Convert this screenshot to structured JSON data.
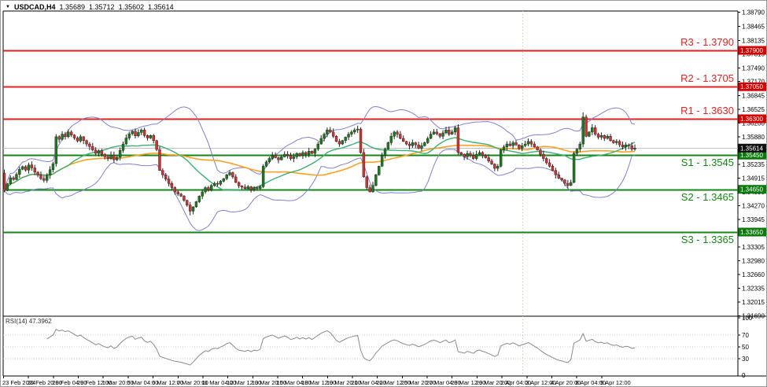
{
  "window": {
    "symbol_timeframe": "USDCAD,H4",
    "menu_icon": "chart-dropdown-triangle"
  },
  "colors": {
    "bull": "#1e7a1e",
    "bear": "#cd3434",
    "candle_outline": "#1a1a1a",
    "wick": "#222222",
    "bollinger": "#8181ce",
    "ma_fast": "#3dae72",
    "ma_slow": "#ffa022",
    "resistance": "#e32222",
    "support": "#168716",
    "current_price_line": "#c0c0c0",
    "badge_resistance": "#d40000",
    "badge_support": "#0b7a0b",
    "badge_current": "#111111",
    "rsi_line": "#8a8a8a",
    "grid_dotted": "#cccccc",
    "period_separator": "#a4d4a4",
    "frame": "#000000",
    "axis_text": "#000000"
  },
  "chart_data": {
    "type": "candlestick",
    "symbol": "USDCAD",
    "timeframe": "H4",
    "title": "USDCAD,H4",
    "ohlc_display": {
      "open": "1.35689",
      "high": "1.35712",
      "low": "1.35602",
      "close": "1.35614"
    },
    "current_price": {
      "value": 1.35614,
      "badge": "1.35614"
    },
    "levels": [
      {
        "name": "R3",
        "label": "R3 - 1.3790",
        "price": 1.379,
        "badge": "1.37900",
        "kind": "resistance"
      },
      {
        "name": "R2",
        "label": "R2 - 1.3705",
        "price": 1.3705,
        "badge": "1.37050",
        "kind": "resistance"
      },
      {
        "name": "R1",
        "label": "R1 - 1.3630",
        "price": 1.363,
        "badge": "1.36300",
        "kind": "resistance"
      },
      {
        "name": "S1",
        "label": "S1 - 1.3545",
        "price": 1.3545,
        "badge": "1.35450",
        "kind": "support"
      },
      {
        "name": "S2",
        "label": "S2 - 1.3465",
        "price": 1.3465,
        "badge": "1.34650",
        "kind": "support"
      },
      {
        "name": "S3",
        "label": "S3 - 1.3365",
        "price": 1.3365,
        "badge": "1.33650",
        "kind": "support"
      }
    ],
    "price_ticks": [
      "1.38790",
      "1.38465",
      "1.38135",
      "1.37815",
      "1.37490",
      "1.37170",
      "1.36845",
      "1.36525",
      "1.36200",
      "1.35880",
      "1.35560",
      "1.35235",
      "1.34915",
      "1.34590",
      "1.34270",
      "1.33945",
      "1.33625",
      "1.33305",
      "1.32980",
      "1.32660",
      "1.32335",
      "1.32015",
      "1.31690"
    ],
    "time_ticks": [
      "23 Feb 2024",
      "26 Feb 20:00",
      "28 Feb 04:00",
      "29 Feb 12:00",
      "1 Mar 20:00",
      "5 Mar 04:00",
      "6 Mar 12:00",
      "7 Mar 20:00",
      "11 Mar 04:00",
      "12 Mar 12:00",
      "13 Mar 20:00",
      "15 Mar 04:00",
      "18 Mar 12:00",
      "19 Mar 20:00",
      "21 Mar 04:00",
      "22 Mar 12:00",
      "25 Mar 20:00",
      "27 Mar 04:00",
      "28 Mar 12:00",
      "29 Mar 20:00",
      "2 Apr 04:00",
      "3 Apr 12:00",
      "4 Apr 20:00",
      "8 Apr 04:00",
      "9 Apr 12:00"
    ],
    "first_open": 1.3503,
    "closes": [
      1.3462,
      1.3478,
      1.3492,
      1.3488,
      1.35,
      1.3512,
      1.3518,
      1.351,
      1.3522,
      1.3515,
      1.3505,
      1.3498,
      1.349,
      1.3486,
      1.3498,
      1.3511,
      1.3525,
      1.3588,
      1.3582,
      1.3594,
      1.3588,
      1.3599,
      1.3592,
      1.3585,
      1.3578,
      1.3588,
      1.3579,
      1.3571,
      1.3565,
      1.3557,
      1.3549,
      1.3555,
      1.3547,
      1.3541,
      1.3537,
      1.3545,
      1.3534,
      1.354,
      1.3556,
      1.3571,
      1.3585,
      1.3595,
      1.3601,
      1.359,
      1.3598,
      1.3604,
      1.3591,
      1.3585,
      1.3591,
      1.3579,
      1.3558,
      1.3509,
      1.3499,
      1.3489,
      1.3479,
      1.3469,
      1.3459,
      1.3454,
      1.3449,
      1.3439,
      1.3428,
      1.3414,
      1.3424,
      1.3436,
      1.3449,
      1.3459,
      1.3469,
      1.3464,
      1.3474,
      1.3479,
      1.3477,
      1.3484,
      1.349,
      1.3499,
      1.3504,
      1.3494,
      1.3481,
      1.3473,
      1.347,
      1.3467,
      1.3471,
      1.3464,
      1.3469,
      1.3467,
      1.3471,
      1.3519,
      1.3529,
      1.3537,
      1.3544,
      1.3539,
      1.3534,
      1.3541,
      1.3547,
      1.3544,
      1.3537,
      1.3541,
      1.3549,
      1.3544,
      1.3551,
      1.3547,
      1.3554,
      1.3549,
      1.3559,
      1.3571,
      1.3584,
      1.3594,
      1.3604,
      1.3599,
      1.3589,
      1.3577,
      1.3571,
      1.3579,
      1.3587,
      1.3594,
      1.3599,
      1.3604,
      1.3606,
      1.3551,
      1.3494,
      1.3469,
      1.3459,
      1.3474,
      1.3499,
      1.3519,
      1.3544,
      1.3559,
      1.3574,
      1.3589,
      1.3599,
      1.3594,
      1.3584,
      1.3577,
      1.3571,
      1.3567,
      1.3574,
      1.3569,
      1.3561,
      1.3567,
      1.3574,
      1.3584,
      1.3594,
      1.3599,
      1.3595,
      1.3589,
      1.3597,
      1.3604,
      1.3594,
      1.3599,
      1.3609,
      1.3551,
      1.3547,
      1.3541,
      1.3549,
      1.3544,
      1.3537,
      1.3547,
      1.3551,
      1.3544,
      1.3539,
      1.3531,
      1.3524,
      1.3514,
      1.3519,
      1.3557,
      1.3564,
      1.3571,
      1.3567,
      1.3574,
      1.3569,
      1.3561,
      1.3567,
      1.3571,
      1.3577,
      1.3571,
      1.3564,
      1.3557,
      1.3547,
      1.3537,
      1.3527,
      1.3519,
      1.3509,
      1.3499,
      1.3491,
      1.3487,
      1.3479,
      1.3474,
      1.3481,
      1.3549,
      1.3559,
      1.3571,
      1.3634,
      1.3589,
      1.3599,
      1.3609,
      1.3594,
      1.3587,
      1.3591,
      1.3584,
      1.3589,
      1.3579,
      1.3574,
      1.3577,
      1.3569,
      1.3564,
      1.3569,
      1.3567,
      1.3559,
      1.35614
    ],
    "wick_overrides": [
      {
        "i": 0,
        "low": 1.3458
      },
      {
        "i": 61,
        "low": 1.3404
      },
      {
        "i": 190,
        "high": 1.3645
      }
    ],
    "rsi": {
      "label": "RSI(14) 47.3962",
      "period": 14,
      "last_value": 47.3962,
      "axis_ticks": [
        "100",
        "70",
        "50",
        "30",
        "0"
      ],
      "guide_levels": [
        70,
        50,
        30
      ]
    }
  }
}
